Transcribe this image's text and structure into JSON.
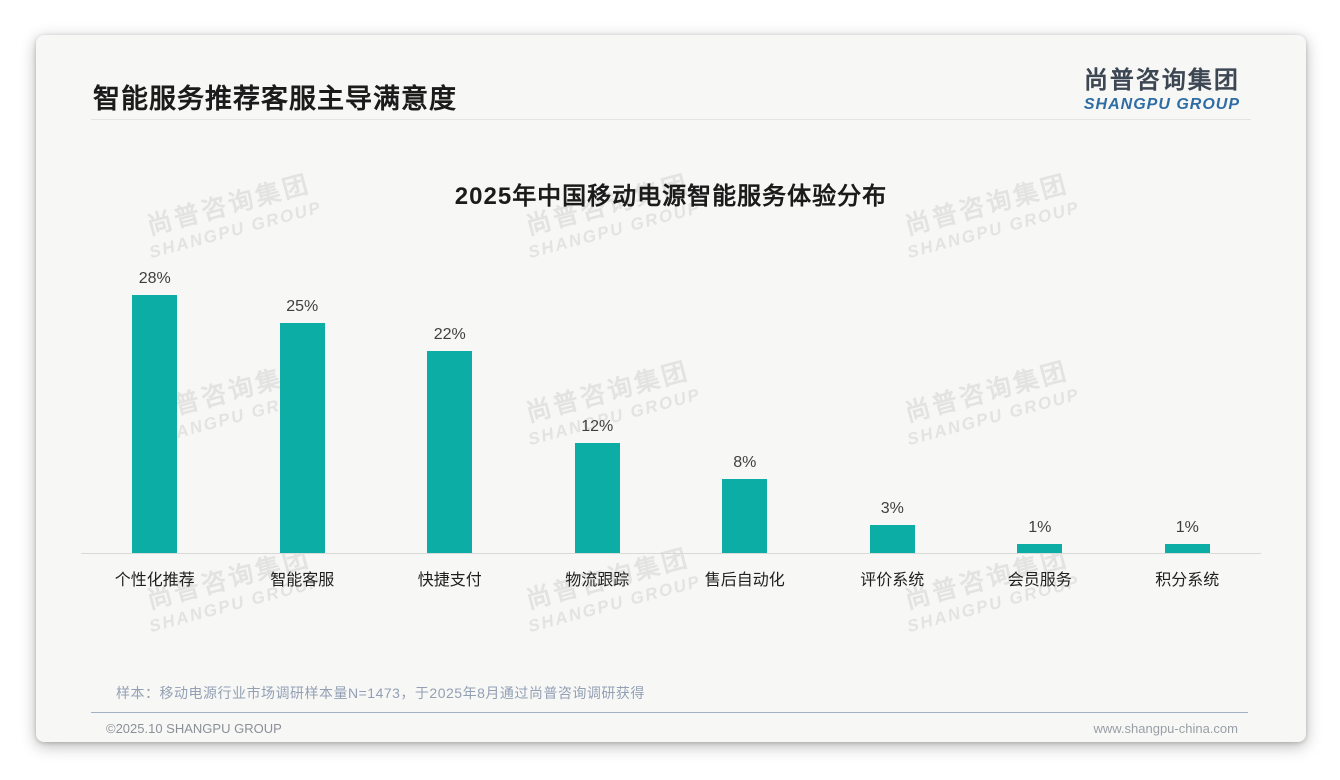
{
  "page": {
    "title": "智能服务推荐客服主导满意度",
    "logo": {
      "cn": "尚普咨询集团",
      "en": "SHANGPU GROUP"
    },
    "watermark": {
      "line1": "尚普咨询集团",
      "line2": "SHANGPU GROUP"
    },
    "footnote": "样本：移动电源行业市场调研样本量N=1473，于2025年8月通过尚普咨询调研获得",
    "footer": {
      "left": "©2025.10 SHANGPU GROUP",
      "right": "www.shangpu-china.com"
    }
  },
  "colors": {
    "bar_teal": "#0cada4",
    "logo_blue": "#2e6da4",
    "logo_dark": "#3d4653",
    "note_grayblue": "#93a0b4"
  },
  "chart_data": {
    "type": "bar",
    "title": "2025年中国移动电源智能服务体验分布",
    "categories": [
      "个性化推荐",
      "智能客服",
      "快捷支付",
      "物流跟踪",
      "售后自动化",
      "评价系统",
      "会员服务",
      "积分系统"
    ],
    "values": [
      28,
      25,
      22,
      12,
      8,
      3,
      1,
      1
    ],
    "value_labels": [
      "28%",
      "25%",
      "22%",
      "12%",
      "8%",
      "3%",
      "1%",
      "1%"
    ],
    "unit": "%",
    "bar_color": "#0cada4",
    "xlabel": "",
    "ylabel": "",
    "ylim": [
      0,
      30
    ],
    "grid": false,
    "legend": "none",
    "value_labels_position": "above-bars"
  }
}
